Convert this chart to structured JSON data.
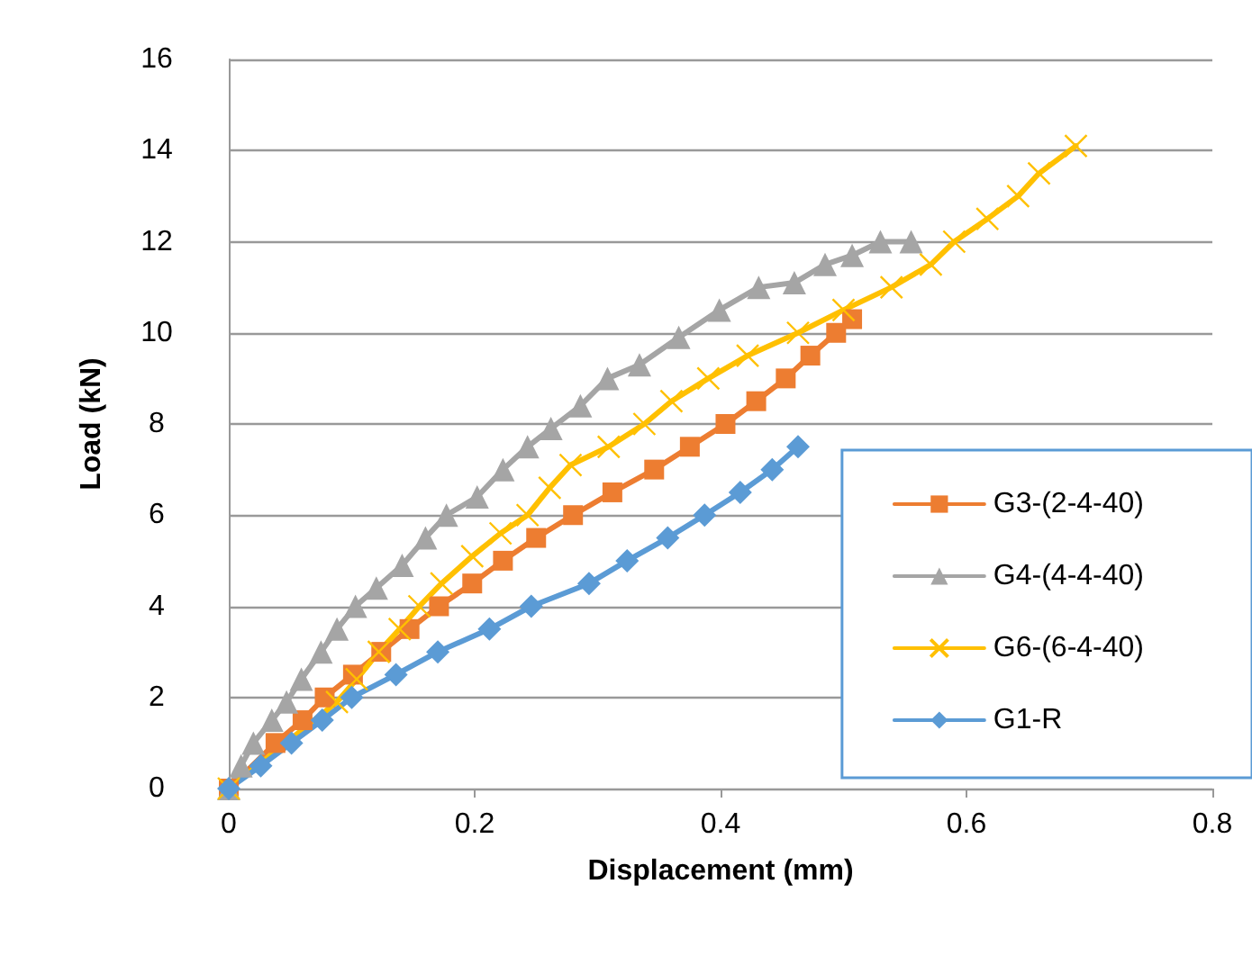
{
  "chart_data": {
    "type": "line",
    "xlabel": "Displacement (mm)",
    "ylabel": "Load (kN)",
    "xlim": [
      0,
      0.8
    ],
    "xticks": [
      0,
      0.2,
      0.4,
      0.6,
      0.8
    ],
    "ylim": [
      0,
      16
    ],
    "yticks": [
      0,
      2,
      4,
      6,
      8,
      10,
      12,
      14,
      16
    ],
    "grid": "y",
    "legend": "bottom right",
    "line_style": "solid",
    "series": [
      {
        "name": "G3-(2-4-40)",
        "color": "#ed7d31",
        "marker": "square",
        "x": [
          0,
          0.02,
          0.038,
          0.06,
          0.078,
          0.101,
          0.124,
          0.147,
          0.171,
          0.198,
          0.223,
          0.25,
          0.28,
          0.312,
          0.346,
          0.375,
          0.404,
          0.429,
          0.453,
          0.473,
          0.494,
          0.507
        ],
        "values": [
          0,
          null,
          1,
          1.5,
          2,
          2.5,
          3,
          3.5,
          4,
          4.5,
          5,
          5.5,
          6,
          6.5,
          7,
          7.5,
          8,
          8.5,
          9,
          9.5,
          10,
          10.3
        ]
      },
      {
        "name": "G4-(4-4-40)",
        "color": "#a5a5a5",
        "marker": "triangle",
        "x": [
          0,
          0.01,
          0.02,
          0.035,
          0.047,
          0.059,
          0.075,
          0.088,
          0.103,
          0.12,
          0.141,
          0.16,
          0.177,
          0.202,
          0.223,
          0.243,
          0.262,
          0.286,
          0.308,
          0.334,
          0.366,
          0.399,
          0.431,
          0.46,
          0.485,
          0.507,
          0.53,
          0.555
        ],
        "values": [
          0,
          0.5,
          1,
          1.5,
          1.9,
          2.4,
          3,
          3.5,
          4,
          4.4,
          4.9,
          5.5,
          6,
          6.4,
          7,
          7.5,
          7.9,
          8.4,
          9,
          9.3,
          9.9,
          10.5,
          11,
          11.1,
          11.5,
          11.7,
          12,
          12
        ]
      },
      {
        "name": "G6-(6-4-40)",
        "color": "#ffc000",
        "marker": "cross",
        "x": [
          0,
          0.034,
          0.059,
          0.074,
          0.088,
          0.104,
          0.122,
          0.139,
          0.155,
          0.173,
          0.198,
          0.221,
          0.243,
          0.261,
          0.278,
          0.309,
          0.338,
          0.36,
          0.39,
          0.422,
          0.463,
          0.5,
          0.539,
          0.571,
          0.59,
          0.617,
          0.642,
          0.659,
          0.689
        ],
        "values": [
          0,
          null,
          null,
          null,
          1.9,
          2.4,
          3,
          3.5,
          4,
          4.5,
          5.1,
          5.6,
          6,
          6.6,
          7.1,
          7.5,
          8,
          8.5,
          9,
          9.5,
          10,
          10.5,
          11,
          11.5,
          12,
          12.5,
          13,
          13.5,
          14.1
        ]
      },
      {
        "name": "G1-R",
        "color": "#5b9bd5",
        "marker": "diamond",
        "x": [
          0,
          0.026,
          0.051,
          0.076,
          0.1,
          0.136,
          0.17,
          0.212,
          0.246,
          0.293,
          0.324,
          0.357,
          0.387,
          0.416,
          0.442,
          0.463
        ],
        "values": [
          0,
          0.5,
          1,
          1.5,
          2,
          2.5,
          3,
          3.5,
          4,
          4.5,
          5,
          5.5,
          6,
          6.5,
          7,
          7.5
        ]
      }
    ]
  }
}
